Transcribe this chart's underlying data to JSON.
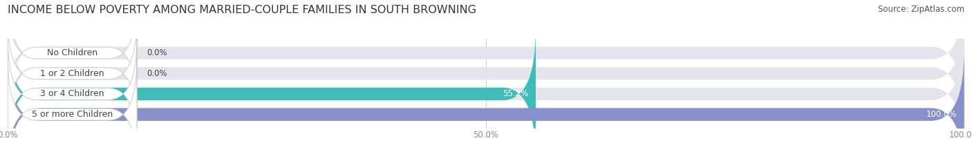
{
  "title": "INCOME BELOW POVERTY AMONG MARRIED-COUPLE FAMILIES IN SOUTH BROWNING",
  "source": "Source: ZipAtlas.com",
  "categories": [
    "No Children",
    "1 or 2 Children",
    "3 or 4 Children",
    "5 or more Children"
  ],
  "values": [
    0.0,
    0.0,
    55.2,
    100.0
  ],
  "bar_colors": [
    "#a8c0de",
    "#c4a8c4",
    "#3dbdb8",
    "#8890cc"
  ],
  "xlim": [
    0,
    100
  ],
  "xticks": [
    0.0,
    50.0,
    100.0
  ],
  "xtick_labels": [
    "0.0%",
    "50.0%",
    "100.0%"
  ],
  "background_color": "#ffffff",
  "bar_bg_color": "#e4e4ec",
  "title_fontsize": 11.5,
  "source_fontsize": 8.5,
  "label_fontsize": 9,
  "value_fontsize": 8.5,
  "tick_fontsize": 8.5,
  "pill_color": "#ffffff",
  "pill_edge_color": "#cccccc",
  "label_text_color": "#444444",
  "grid_color": "#cccccc",
  "value_color_inside": "#ffffff",
  "value_color_outside": "#444444",
  "tick_color": "#888888"
}
